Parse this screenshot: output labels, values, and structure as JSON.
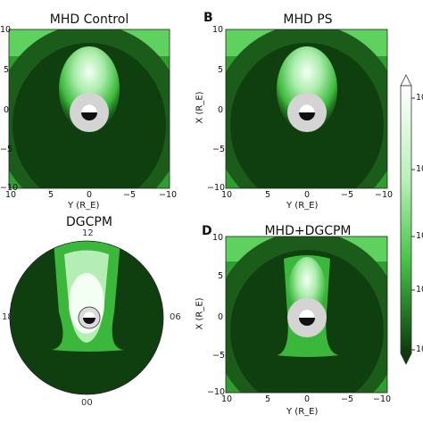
{
  "panels": {
    "a": {
      "title": "MHD Control",
      "letter": ""
    },
    "b": {
      "title": "MHD PS",
      "letter": "B"
    },
    "c": {
      "title": "DGCPM",
      "letter": ""
    },
    "d": {
      "title": "MHD+DGCPM",
      "letter": "D"
    }
  },
  "axes": {
    "xlabel": "Y (R_E)",
    "ylabel": "X (R_E)",
    "xticks": [
      "10",
      "5",
      "0",
      "−5",
      "−10"
    ],
    "yticks": [
      "10",
      "5",
      "0",
      "−5",
      "−10"
    ]
  },
  "dgcpm_clock": {
    "top": "12",
    "left": "18",
    "right": "06",
    "bottom": "00"
  },
  "colorbar": {
    "ticks": [
      "10",
      "10",
      "10",
      "10",
      "10"
    ]
  },
  "colors": {
    "dark": "#0d3a0d",
    "mid": "#1f7a1f",
    "bright": "#4ccd4c",
    "light": "#b8f2b8",
    "earth_disk": "#d4d4d4"
  }
}
